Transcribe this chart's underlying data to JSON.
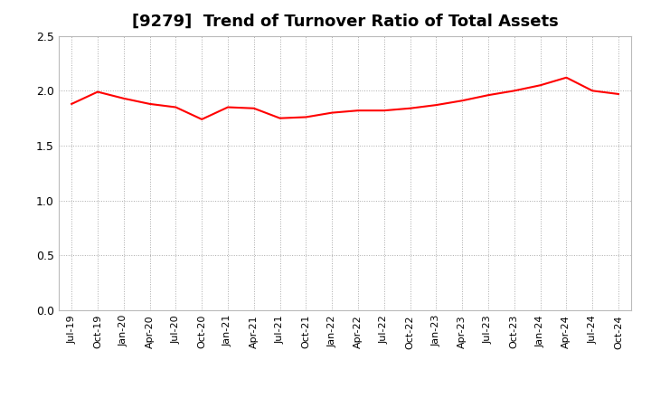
{
  "title": "[9279]  Trend of Turnover Ratio of Total Assets",
  "title_fontsize": 13,
  "line_color": "#FF0000",
  "line_width": 1.5,
  "background_color": "#FFFFFF",
  "grid_color": "#AAAAAA",
  "ylim": [
    0.0,
    2.5
  ],
  "yticks": [
    0.0,
    0.5,
    1.0,
    1.5,
    2.0,
    2.5
  ],
  "values": [
    1.88,
    1.99,
    1.93,
    1.88,
    1.85,
    1.74,
    1.85,
    1.84,
    1.75,
    1.76,
    1.8,
    1.82,
    1.82,
    1.84,
    1.87,
    1.91,
    1.96,
    2.0,
    2.05,
    2.12,
    2.0,
    1.97
  ],
  "xtick_labels": [
    "Jul-19",
    "Oct-19",
    "Jan-20",
    "Apr-20",
    "Jul-20",
    "Oct-20",
    "Jan-21",
    "Apr-21",
    "Jul-21",
    "Oct-21",
    "Jan-22",
    "Apr-22",
    "Jul-22",
    "Oct-22",
    "Jan-23",
    "Apr-23",
    "Jul-23",
    "Oct-23",
    "Jan-24",
    "Apr-24",
    "Jul-24",
    "Oct-24"
  ]
}
